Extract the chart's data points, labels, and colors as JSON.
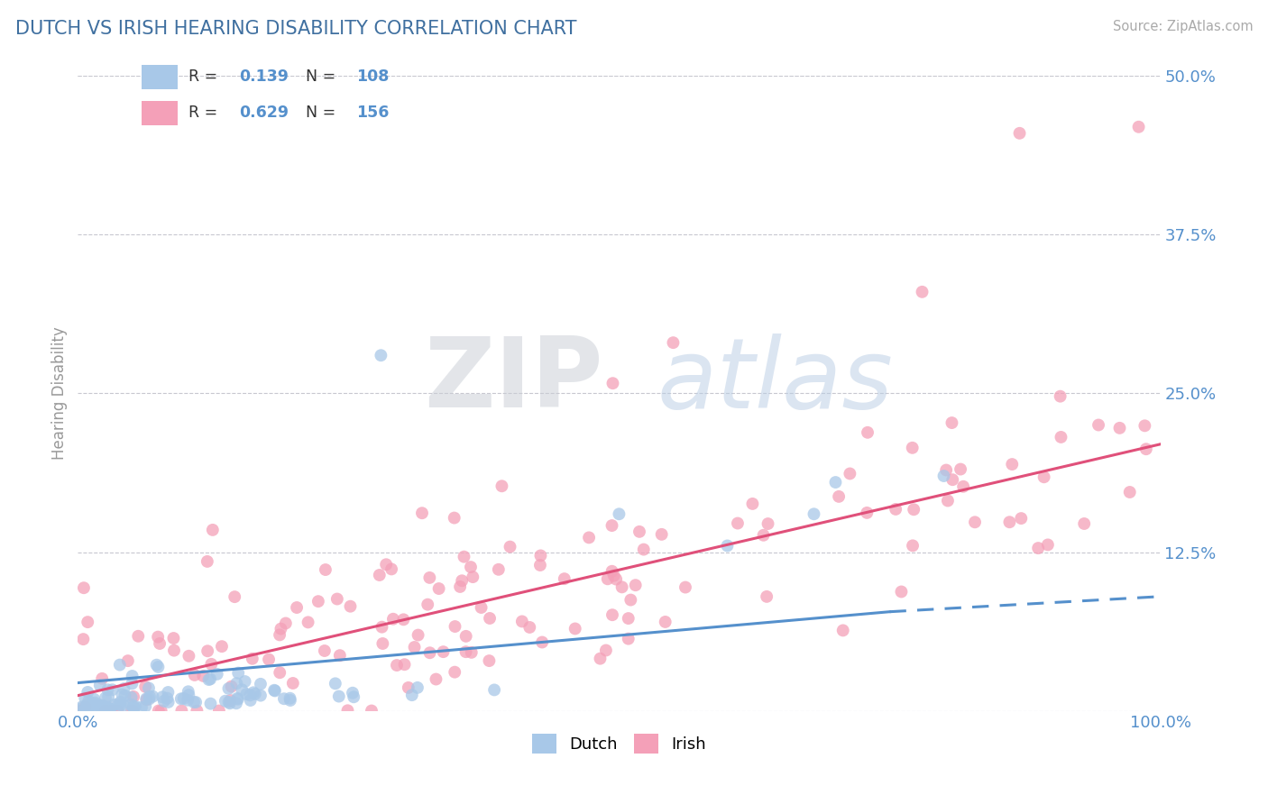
{
  "title": "DUTCH VS IRISH HEARING DISABILITY CORRELATION CHART",
  "source": "Source: ZipAtlas.com",
  "ylabel": "Hearing Disability",
  "xlim": [
    0.0,
    1.0
  ],
  "ylim": [
    0.0,
    0.5
  ],
  "yticks": [
    0.0,
    0.125,
    0.25,
    0.375,
    0.5
  ],
  "ytick_labels": [
    "",
    "12.5%",
    "25.0%",
    "37.5%",
    "50.0%"
  ],
  "xticks": [
    0.0,
    0.25,
    0.5,
    0.75,
    1.0
  ],
  "xtick_labels": [
    "0.0%",
    "",
    "",
    "",
    "100.0%"
  ],
  "dutch_color": "#a8c8e8",
  "irish_color": "#f4a0b8",
  "dutch_line_color": "#5590cc",
  "irish_line_color": "#e0507a",
  "dutch_R": 0.139,
  "dutch_N": 108,
  "irish_R": 0.629,
  "irish_N": 156,
  "legend_label_dutch": "Dutch",
  "legend_label_irish": "Irish",
  "watermark_zip": "ZIP",
  "watermark_atlas": "atlas",
  "background_color": "#ffffff",
  "grid_color": "#c8c8d0",
  "title_color": "#4070a0",
  "tick_color": "#5590cc",
  "dutch_line_y0": 0.022,
  "dutch_line_y1_solid": 0.078,
  "dutch_line_x_solid_end": 0.75,
  "dutch_line_y1_dash": 0.09,
  "irish_line_y0": 0.012,
  "irish_line_y1": 0.21
}
